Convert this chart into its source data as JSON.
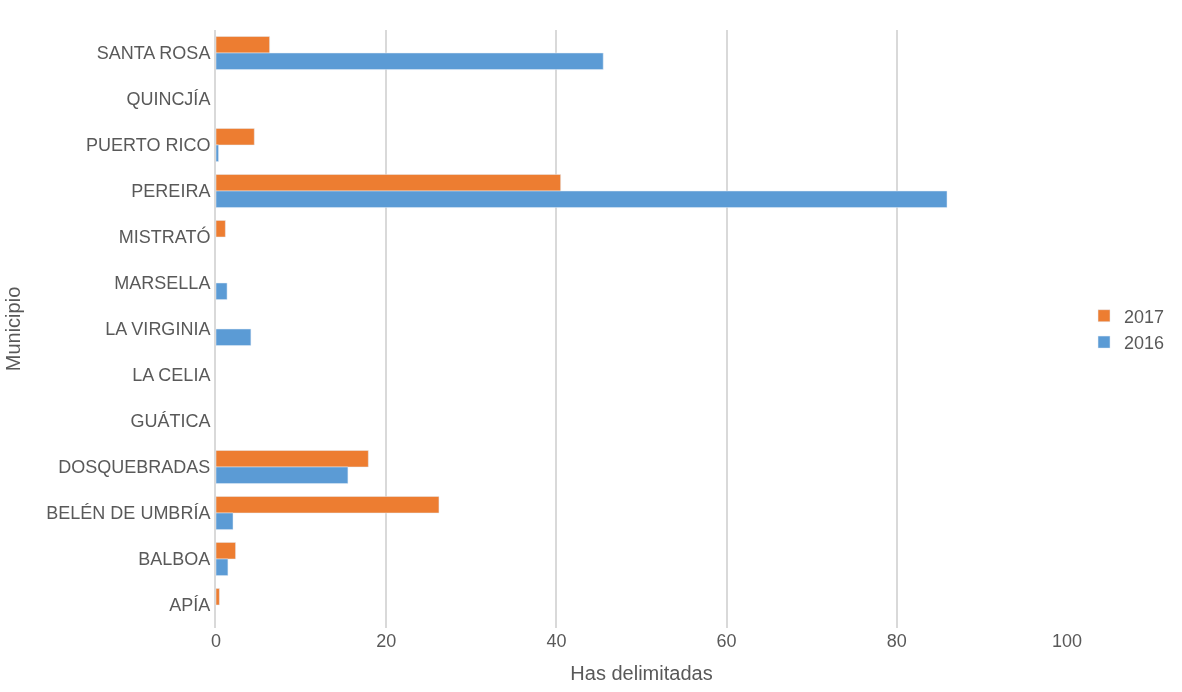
{
  "chart_data": {
    "type": "bar",
    "orientation": "horizontal",
    "xlabel": "Has delimitadas",
    "ylabel": "Municipio",
    "categories": [
      "SANTA ROSA",
      "QUINCJÍA",
      "PUERTO RICO",
      "PEREIRA",
      "MISTRATÓ",
      "MARSELLA",
      "LA VIRGINIA",
      "LA CELIA",
      "GUÁTICA",
      "DOSQUEBRADAS",
      "BELÉN DE UMBRÍA",
      "BALBOA",
      "APÍA"
    ],
    "series": [
      {
        "name": "2017",
        "color": "#ed7d31",
        "values": [
          6.3,
          null,
          4.5,
          40.5,
          1.1,
          null,
          null,
          null,
          null,
          17.9,
          26.2,
          2.3,
          0.4
        ]
      },
      {
        "name": "2016",
        "color": "#5b9bd5",
        "values": [
          45.5,
          null,
          0.3,
          85.9,
          null,
          1.3,
          4.1,
          null,
          null,
          15.5,
          2.0,
          1.4,
          null
        ]
      }
    ],
    "xlim": [
      0,
      100
    ],
    "xticks": [
      0,
      20,
      40,
      60,
      80,
      100
    ],
    "grid": "x",
    "legend": "right"
  }
}
